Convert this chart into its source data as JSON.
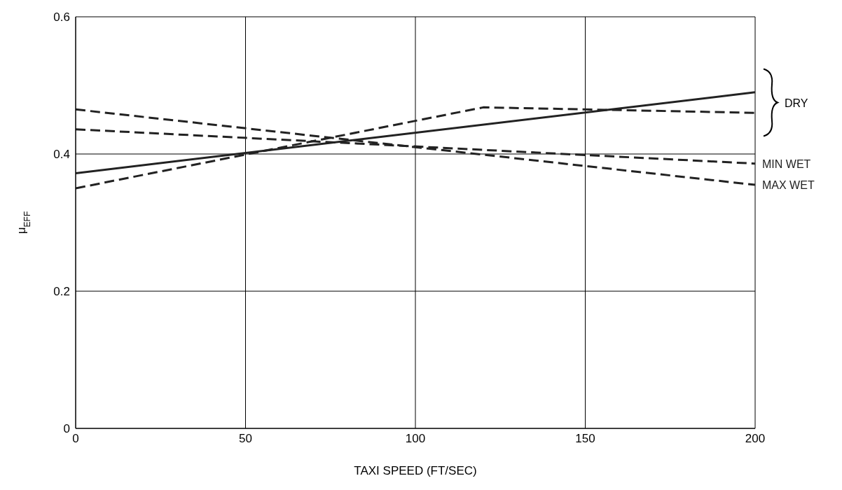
{
  "chart_data": {
    "type": "line",
    "xlabel": "TAXI SPEED (FT/SEC)",
    "ylabel": "μ$_{EFF}$",
    "xlim": [
      0,
      200
    ],
    "xticks": [
      0,
      50,
      100,
      150,
      200
    ],
    "ylim": [
      0,
      0.6
    ],
    "yticks": [
      0,
      0.2,
      0.4,
      0.6
    ],
    "grid": true,
    "series": [
      {
        "color": "#222222",
        "line_style": "solid",
        "x": [
          0,
          200
        ],
        "values": [
          0.372,
          0.49
        ]
      },
      {
        "color": "#222222",
        "line_style": "dashed",
        "x": [
          0,
          120,
          200
        ],
        "values": [
          0.35,
          0.468,
          0.46
        ]
      },
      {
        "name": "MIN WET",
        "color": "#222222",
        "line_style": "dashed",
        "x": [
          0,
          200
        ],
        "values": [
          0.436,
          0.386
        ]
      },
      {
        "name": "MAX WET",
        "color": "#222222",
        "line_style": "dashed",
        "x": [
          0,
          200
        ],
        "values": [
          0.465,
          0.355
        ]
      }
    ],
    "annotations": [
      "DRY"
    ]
  }
}
